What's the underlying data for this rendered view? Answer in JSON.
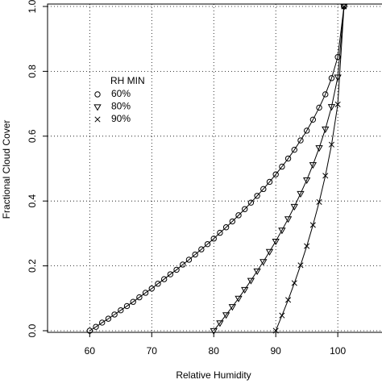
{
  "chart_data": {
    "type": "line",
    "x_label": "Relative Humidity",
    "y_label": "Fractional Cloud Cover",
    "legend_title": "RH MIN",
    "grid": true,
    "x": [
      60,
      61,
      62,
      63,
      64,
      65,
      66,
      67,
      68,
      69,
      70,
      71,
      72,
      73,
      74,
      75,
      76,
      77,
      78,
      79,
      80,
      81,
      82,
      83,
      84,
      85,
      86,
      87,
      88,
      89,
      90,
      91,
      92,
      93,
      94,
      95,
      96,
      97,
      98,
      99,
      100,
      101
    ],
    "series": [
      {
        "name": "60%",
        "color": "#000000",
        "marker": "circle",
        "values": [
          0,
          0.012,
          0.025,
          0.037,
          0.05,
          0.063,
          0.076,
          0.089,
          0.103,
          0.117,
          0.13,
          0.145,
          0.159,
          0.174,
          0.188,
          0.204,
          0.219,
          0.235,
          0.251,
          0.267,
          0.284,
          0.302,
          0.319,
          0.337,
          0.356,
          0.375,
          0.395,
          0.416,
          0.437,
          0.459,
          0.482,
          0.506,
          0.531,
          0.558,
          0.587,
          0.617,
          0.651,
          0.688,
          0.729,
          0.779,
          0.844,
          1
        ]
      },
      {
        "name": "80%",
        "color": "#000000",
        "marker": "triangle-down",
        "values": [
          null,
          null,
          null,
          null,
          null,
          null,
          null,
          null,
          null,
          null,
          null,
          null,
          null,
          null,
          null,
          null,
          null,
          null,
          null,
          null,
          0,
          0.024,
          0.049,
          0.074,
          0.1,
          0.127,
          0.155,
          0.184,
          0.213,
          0.244,
          0.276,
          0.31,
          0.345,
          0.383,
          0.423,
          0.465,
          0.512,
          0.564,
          0.622,
          0.691,
          0.782,
          1
        ]
      },
      {
        "name": "90%",
        "color": "#000000",
        "marker": "cross",
        "values": [
          null,
          null,
          null,
          null,
          null,
          null,
          null,
          null,
          null,
          null,
          null,
          null,
          null,
          null,
          null,
          null,
          null,
          null,
          null,
          null,
          null,
          null,
          null,
          null,
          null,
          null,
          null,
          null,
          null,
          null,
          0,
          0.047,
          0.095,
          0.147,
          0.202,
          0.261,
          0.326,
          0.397,
          0.478,
          0.574,
          0.698,
          1
        ]
      }
    ],
    "xlim": [
      53.2,
      107
    ],
    "xticks": [
      60,
      70,
      80,
      90,
      100
    ],
    "ylim": [
      -0.005,
      1.0075
    ],
    "yticks": [
      {
        "value": 0,
        "label": "0.0"
      },
      0.2,
      0.4,
      0.6,
      0.8,
      {
        "value": 1,
        "label": "1.0"
      }
    ]
  }
}
